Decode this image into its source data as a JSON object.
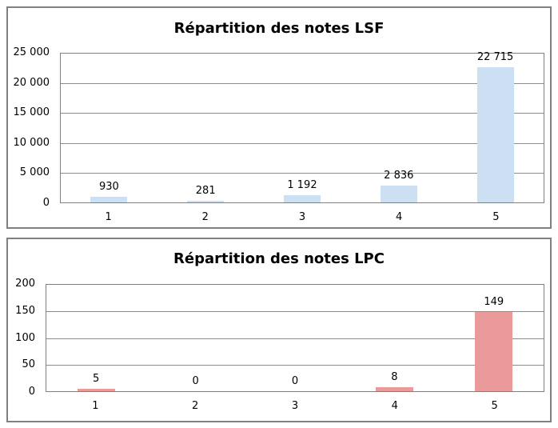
{
  "page": {
    "background": "#FFFFFF"
  },
  "colors": {
    "chart_border": "#808080",
    "plot_border": "#808080",
    "grid_line": "#8C8C8C",
    "text": "#000000",
    "bar_blue": "#CDDFF2",
    "bar_pink": "#EB9A9B"
  },
  "chart_data": [
    {
      "type": "bar",
      "title": "Répartition des notes LSF",
      "categories": [
        "1",
        "2",
        "3",
        "4",
        "5"
      ],
      "values": [
        930,
        281,
        1192,
        2836,
        22715
      ],
      "value_labels": [
        "930",
        "281",
        "1 192",
        "2 836",
        "22 715"
      ],
      "xlabel": "",
      "ylabel": "",
      "ylim": [
        0,
        25000
      ],
      "y_tick_labels": [
        "25 000",
        "20 000",
        "15 000",
        "10 000",
        "5 000",
        "0"
      ],
      "grid": true,
      "legend": "none",
      "bar_color": "#CDDFF2"
    },
    {
      "type": "bar",
      "title": "Répartition des notes LPC",
      "categories": [
        "1",
        "2",
        "3",
        "4",
        "5"
      ],
      "values": [
        5,
        0,
        0,
        8,
        149
      ],
      "value_labels": [
        "5",
        "0",
        "0",
        "8",
        "149"
      ],
      "xlabel": "",
      "ylabel": "",
      "ylim": [
        0,
        200
      ],
      "y_tick_labels": [
        "200",
        "150",
        "100",
        "50",
        "0"
      ],
      "grid": true,
      "legend": "none",
      "bar_color": "#EB9A9B"
    }
  ]
}
